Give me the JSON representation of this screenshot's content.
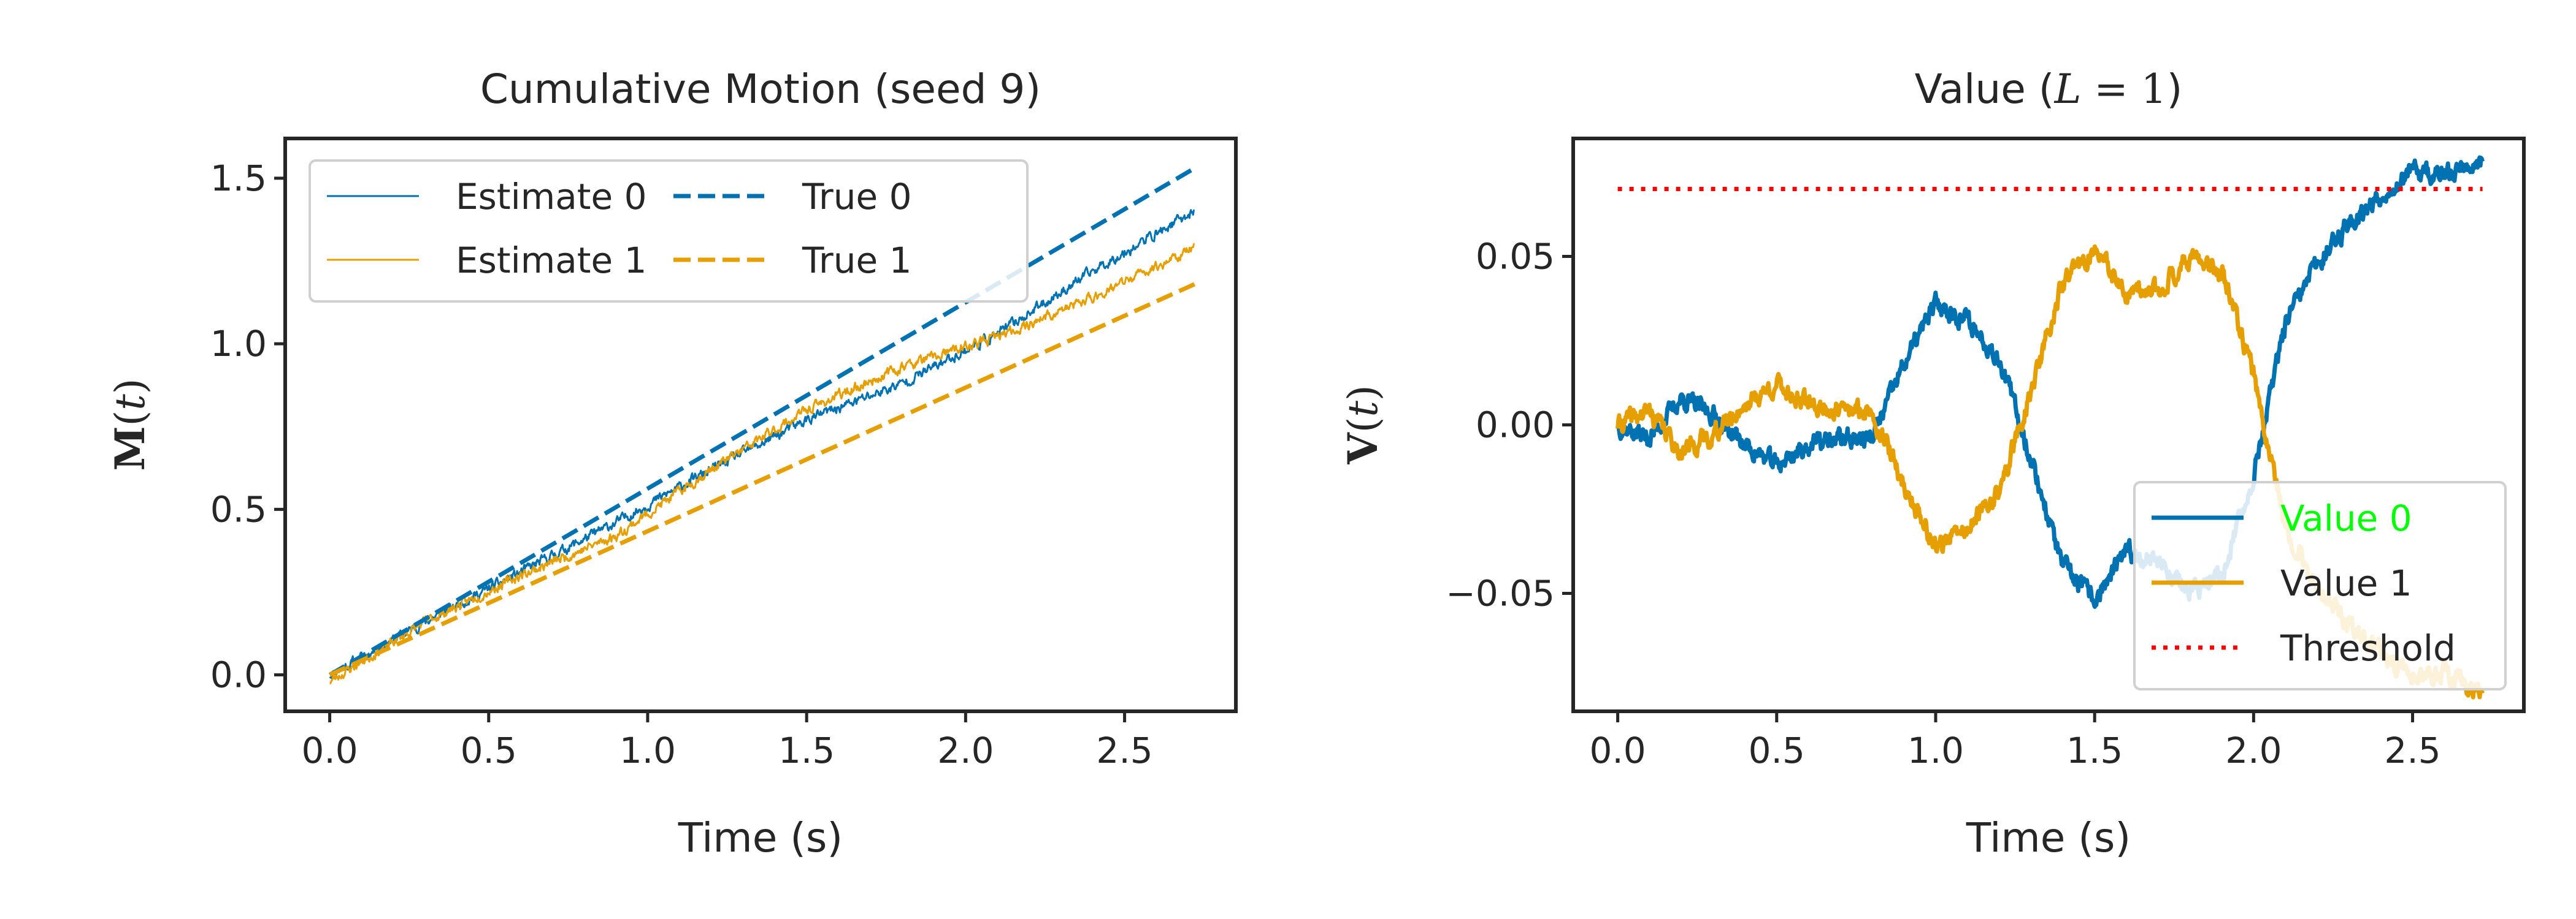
{
  "chart_data": [
    {
      "type": "line",
      "title": "Cumulative Motion (seed 9)",
      "xlabel": "Time (s)",
      "ylabel_symbol": "M",
      "ylabel_arg": "t",
      "xlim": [
        -0.14,
        2.85
      ],
      "ylim": [
        -0.11,
        1.62
      ],
      "xticks": [
        0.0,
        0.5,
        1.0,
        1.5,
        2.0,
        2.5
      ],
      "yticks": [
        0.0,
        0.5,
        1.0,
        1.5
      ],
      "grid": false,
      "legend": {
        "placement": "top-left",
        "columns": 2,
        "order": [
          "Estimate 0",
          "Estimate 1",
          "True 0",
          "True 1"
        ]
      },
      "series": [
        {
          "name": "Estimate 0",
          "style": "solid-thin",
          "color": "#0072B2",
          "noise": 0.012,
          "seed": 11,
          "x": [
            0,
            0.3,
            0.6,
            0.9,
            1.2,
            1.5,
            1.8,
            2.1,
            2.4,
            2.72
          ],
          "y": [
            0,
            0.16,
            0.31,
            0.46,
            0.62,
            0.77,
            0.88,
            1.03,
            1.22,
            1.4
          ]
        },
        {
          "name": "Estimate 1",
          "style": "solid-thin",
          "color": "#E69F00",
          "noise": 0.012,
          "seed": 23,
          "x": [
            0,
            0.3,
            0.6,
            0.9,
            1.2,
            1.5,
            1.8,
            2.1,
            2.4,
            2.72
          ],
          "y": [
            -0.02,
            0.16,
            0.3,
            0.42,
            0.62,
            0.8,
            0.93,
            1.02,
            1.14,
            1.29
          ]
        },
        {
          "name": "True 0",
          "style": "dashed",
          "color": "#0072B2",
          "x": [
            0,
            2.72
          ],
          "y": [
            0,
            1.53
          ]
        },
        {
          "name": "True 1",
          "style": "dashed",
          "color": "#E69F00",
          "x": [
            0,
            2.72
          ],
          "y": [
            0,
            1.18
          ]
        }
      ]
    },
    {
      "type": "line",
      "title_text": "Value (",
      "title_math_var": "L",
      "title_math_rest": " = 1",
      "title_close": ")",
      "xlabel": "Time (s)",
      "ylabel_symbol": "V",
      "ylabel_arg": "t",
      "xlim": [
        -0.14,
        2.85
      ],
      "ylim": [
        -0.085,
        0.085
      ],
      "xticks": [
        0.0,
        0.5,
        1.0,
        1.5,
        2.0,
        2.5
      ],
      "yticks": [
        -0.05,
        0.0,
        0.05
      ],
      "ytick_labels": [
        "−0.05",
        "0.00",
        "0.05"
      ],
      "grid": false,
      "legend": {
        "placement": "lower-right",
        "columns": 1,
        "order": [
          "Value 0",
          "Value 1",
          "Threshold"
        ],
        "highlight_color": "#00ff00",
        "highlight_entry": "Value 0"
      },
      "series": [
        {
          "name": "Value 0",
          "style": "solid",
          "color": "#0072B2",
          "noise": 0.0022,
          "seed": 37,
          "x": [
            0,
            0.1,
            0.2,
            0.3,
            0.4,
            0.5,
            0.6,
            0.7,
            0.8,
            0.9,
            1.0,
            1.1,
            1.2,
            1.3,
            1.4,
            1.5,
            1.6,
            1.7,
            1.8,
            1.9,
            2.0,
            2.1,
            2.2,
            2.3,
            2.4,
            2.5,
            2.6,
            2.72
          ],
          "y": [
            0,
            -0.004,
            0.008,
            0.003,
            -0.006,
            -0.012,
            -0.006,
            -0.004,
            -0.004,
            0.018,
            0.036,
            0.031,
            0.02,
            -0.01,
            -0.042,
            -0.052,
            -0.038,
            -0.04,
            -0.05,
            -0.045,
            -0.015,
            0.03,
            0.048,
            0.06,
            0.068,
            0.075,
            0.074,
            0.079
          ]
        },
        {
          "name": "Value 1",
          "style": "solid",
          "color": "#E69F00",
          "noise": 0.0022,
          "seed": 41,
          "x": [
            0,
            0.1,
            0.2,
            0.3,
            0.4,
            0.5,
            0.6,
            0.7,
            0.8,
            0.9,
            1.0,
            1.1,
            1.2,
            1.3,
            1.4,
            1.5,
            1.6,
            1.7,
            1.8,
            1.9,
            2.0,
            2.1,
            2.2,
            2.3,
            2.4,
            2.5,
            2.6,
            2.72
          ],
          "y": [
            0,
            0.004,
            -0.008,
            -0.003,
            0.006,
            0.012,
            0.006,
            0.004,
            0.004,
            -0.018,
            -0.036,
            -0.031,
            -0.02,
            0.01,
            0.042,
            0.052,
            0.038,
            0.04,
            0.05,
            0.045,
            0.015,
            -0.03,
            -0.048,
            -0.06,
            -0.068,
            -0.075,
            -0.074,
            -0.079
          ]
        },
        {
          "name": "Threshold",
          "style": "dotted",
          "color": "#ff0000",
          "x": [
            0,
            2.72
          ],
          "y": [
            0.07,
            0.07
          ]
        }
      ]
    }
  ]
}
